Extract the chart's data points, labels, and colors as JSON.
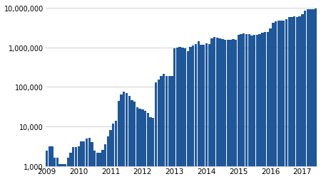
{
  "bar_color": "#1f5799",
  "background_color": "#ffffff",
  "grid_color": "#d0d0d0",
  "ylim": [
    1000,
    13000000
  ],
  "yticks": [
    1000,
    10000,
    100000,
    1000000,
    10000000
  ],
  "ytick_labels": [
    "1,000",
    "10,000",
    "100,000",
    "1,000,000",
    "10,000,000"
  ],
  "xtick_labels": [
    "2009",
    "2010",
    "2011",
    "2012",
    "2013",
    "2014",
    "2015",
    "2016",
    "2017"
  ],
  "values": [
    2500,
    3200,
    3200,
    1600,
    1600,
    1100,
    1100,
    1100,
    1600,
    2200,
    3000,
    3000,
    3200,
    4200,
    4200,
    5000,
    5200,
    4000,
    2500,
    2200,
    2200,
    2600,
    3500,
    5500,
    8000,
    12000,
    14000,
    45000,
    65000,
    75000,
    70000,
    58000,
    47000,
    43000,
    30000,
    28000,
    27000,
    25000,
    22000,
    17000,
    16500,
    130000,
    155000,
    190000,
    215000,
    190000,
    185000,
    190000,
    960000,
    1000000,
    1040000,
    975000,
    940000,
    800000,
    1040000,
    1110000,
    1190000,
    1440000,
    1140000,
    1140000,
    1240000,
    1200000,
    1680000,
    1840000,
    1790000,
    1690000,
    1590000,
    1540000,
    1540000,
    1540000,
    1640000,
    1540000,
    2090000,
    2190000,
    2290000,
    2190000,
    2190000,
    1990000,
    2090000,
    2090000,
    2140000,
    2390000,
    2490000,
    2490000,
    2990000,
    4190000,
    4490000,
    4690000,
    4790000,
    4790000,
    5190000,
    5790000,
    5790000,
    5990000,
    5790000,
    5990000,
    6990000,
    8490000,
    8990000,
    9190000,
    8990000,
    9490000
  ]
}
